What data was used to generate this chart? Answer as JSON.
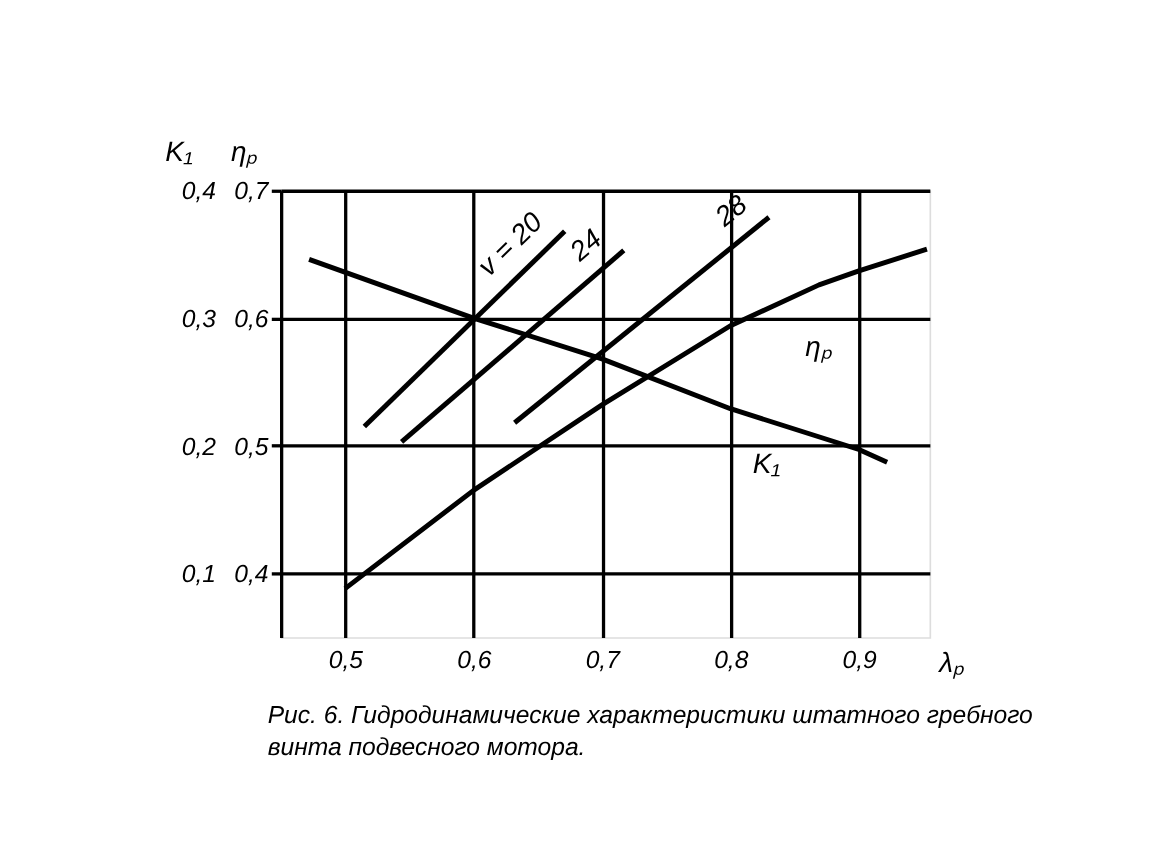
{
  "chart_data": {
    "type": "line",
    "xlabel": "λₚ",
    "ylabel": "ηₚ",
    "y2label": "K₁",
    "xlim": [
      0.45,
      0.955
    ],
    "ylim": [
      0.35,
      0.7
    ],
    "y2lim": [
      0.05,
      0.4
    ],
    "xticks": [
      {
        "value": 0.5,
        "label": "0,5"
      },
      {
        "value": 0.6,
        "label": "0,6"
      },
      {
        "value": 0.7,
        "label": "0,7"
      },
      {
        "value": 0.8,
        "label": "0,8"
      },
      {
        "value": 0.9,
        "label": "0,9"
      }
    ],
    "yticks": [
      {
        "value": 0.4,
        "label": "0,4"
      },
      {
        "value": 0.5,
        "label": "0,5"
      },
      {
        "value": 0.6,
        "label": "0,6"
      },
      {
        "value": 0.7,
        "label": "0,7"
      }
    ],
    "y2ticks": [
      {
        "value": 0.1,
        "label": "0,1"
      },
      {
        "value": 0.2,
        "label": "0,2"
      },
      {
        "value": 0.3,
        "label": "0,3"
      },
      {
        "value": 0.4,
        "label": "0,4"
      }
    ],
    "grid": true,
    "marker": "none",
    "line_style": "solid",
    "series": [
      {
        "name": "K₁",
        "color": "#000000",
        "axis": "y2",
        "x": [
          0.472,
          0.6,
          0.7,
          0.8,
          0.9,
          0.922
        ],
        "values": [
          0.346,
          0.3,
          0.268,
          0.229,
          0.197,
          0.187
        ]
      },
      {
        "name": "ηₚ",
        "color": "#000000",
        "axis": "y",
        "x": [
          0.5,
          0.6,
          0.7,
          0.8,
          0.869,
          0.9,
          0.953
        ],
        "values": [
          0.388,
          0.465,
          0.532,
          0.594,
          0.626,
          0.637,
          0.654
        ]
      },
      {
        "name": "v = 20",
        "color": "#000000",
        "axis": "y",
        "x": [
          0.515,
          0.671
        ],
        "values": [
          0.515,
          0.668
        ]
      },
      {
        "name": "24",
        "color": "#000000",
        "axis": "y",
        "x": [
          0.544,
          0.717
        ],
        "values": [
          0.503,
          0.653
        ]
      },
      {
        "name": "28",
        "color": "#000000",
        "axis": "y",
        "x": [
          0.632,
          0.83
        ],
        "values": [
          0.518,
          0.679
        ]
      }
    ],
    "annotations": [
      "Рис. 6. Гидродинамические характеристики штатного гребного винта подвесного мотора."
    ]
  }
}
